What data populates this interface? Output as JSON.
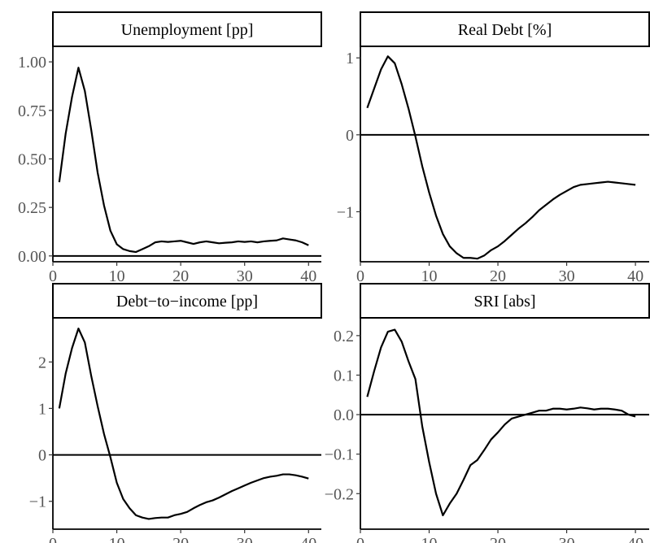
{
  "chart_data": [
    {
      "type": "line",
      "title": "Unemployment [pp]",
      "xlim": [
        0,
        42
      ],
      "ylim": [
        -0.03,
        1.08
      ],
      "x_ticks": [
        0,
        10,
        20,
        30,
        40
      ],
      "y_ticks": [
        0.0,
        0.25,
        0.5,
        0.75,
        1.0
      ],
      "y_tick_labels": [
        "0.00",
        "0.25",
        "0.50",
        "0.75",
        "1.00"
      ],
      "zero_line": true,
      "grid": false,
      "x": [
        1,
        2,
        3,
        4,
        5,
        6,
        7,
        8,
        9,
        10,
        11,
        12,
        13,
        14,
        15,
        16,
        17,
        18,
        19,
        20,
        21,
        22,
        23,
        24,
        25,
        26,
        27,
        28,
        29,
        30,
        31,
        32,
        33,
        34,
        35,
        36,
        37,
        38,
        39,
        40
      ],
      "y": [
        0.38,
        0.63,
        0.82,
        0.97,
        0.85,
        0.65,
        0.43,
        0.26,
        0.13,
        0.06,
        0.035,
        0.025,
        0.02,
        0.035,
        0.05,
        0.07,
        0.075,
        0.072,
        0.075,
        0.078,
        0.07,
        0.062,
        0.07,
        0.075,
        0.07,
        0.065,
        0.068,
        0.07,
        0.075,
        0.072,
        0.075,
        0.07,
        0.075,
        0.078,
        0.08,
        0.09,
        0.085,
        0.08,
        0.07,
        0.055
      ]
    },
    {
      "type": "line",
      "title": "Real Debt [%]",
      "xlim": [
        0,
        42
      ],
      "ylim": [
        -1.65,
        1.15
      ],
      "x_ticks": [
        0,
        10,
        20,
        30,
        40
      ],
      "y_ticks": [
        -1,
        0,
        1
      ],
      "y_tick_labels": [
        "−1",
        "0",
        "1"
      ],
      "zero_line": true,
      "grid": false,
      "x": [
        1,
        2,
        3,
        4,
        5,
        6,
        7,
        8,
        9,
        10,
        11,
        12,
        13,
        14,
        15,
        16,
        17,
        18,
        19,
        20,
        21,
        22,
        23,
        24,
        25,
        26,
        27,
        28,
        29,
        30,
        31,
        32,
        33,
        34,
        35,
        36,
        37,
        38,
        39,
        40
      ],
      "y": [
        0.35,
        0.6,
        0.85,
        1.02,
        0.93,
        0.66,
        0.34,
        -0.02,
        -0.41,
        -0.75,
        -1.05,
        -1.29,
        -1.45,
        -1.54,
        -1.6,
        -1.6,
        -1.61,
        -1.57,
        -1.5,
        -1.45,
        -1.38,
        -1.3,
        -1.22,
        -1.15,
        -1.07,
        -0.98,
        -0.91,
        -0.84,
        -0.78,
        -0.73,
        -0.68,
        -0.65,
        -0.64,
        -0.63,
        -0.62,
        -0.61,
        -0.62,
        -0.63,
        -0.64,
        -0.65
      ]
    },
    {
      "type": "line",
      "title": "Debt−to−income [pp]",
      "xlim": [
        0,
        42
      ],
      "ylim": [
        -1.6,
        2.95
      ],
      "x_ticks": [
        0,
        10,
        20,
        30,
        40
      ],
      "y_ticks": [
        -1,
        0,
        1,
        2
      ],
      "y_tick_labels": [
        "−1",
        "0",
        "1",
        "2"
      ],
      "zero_line": true,
      "grid": false,
      "x": [
        1,
        2,
        3,
        4,
        5,
        6,
        7,
        8,
        9,
        10,
        11,
        12,
        13,
        14,
        15,
        16,
        17,
        18,
        19,
        20,
        21,
        22,
        23,
        24,
        25,
        26,
        27,
        28,
        29,
        30,
        31,
        32,
        33,
        34,
        35,
        36,
        37,
        38,
        39,
        40
      ],
      "y": [
        1.0,
        1.75,
        2.3,
        2.72,
        2.42,
        1.7,
        1.05,
        0.45,
        -0.05,
        -0.6,
        -0.95,
        -1.15,
        -1.3,
        -1.35,
        -1.38,
        -1.36,
        -1.35,
        -1.35,
        -1.3,
        -1.27,
        -1.23,
        -1.15,
        -1.08,
        -1.02,
        -0.98,
        -0.92,
        -0.85,
        -0.78,
        -0.72,
        -0.66,
        -0.6,
        -0.55,
        -0.5,
        -0.47,
        -0.45,
        -0.42,
        -0.42,
        -0.44,
        -0.47,
        -0.51
      ]
    },
    {
      "type": "line",
      "title": "SRI [abs]",
      "xlim": [
        0,
        42
      ],
      "ylim": [
        -0.29,
        0.245
      ],
      "x_ticks": [
        0,
        10,
        20,
        30,
        40
      ],
      "y_ticks": [
        -0.2,
        -0.1,
        0.0,
        0.1,
        0.2
      ],
      "y_tick_labels": [
        "−0.2",
        "−0.1",
        "0.0",
        "0.1",
        "0.2"
      ],
      "zero_line": true,
      "grid": false,
      "x": [
        1,
        2,
        3,
        4,
        5,
        6,
        7,
        8,
        9,
        10,
        11,
        12,
        13,
        14,
        15,
        16,
        17,
        18,
        19,
        20,
        21,
        22,
        23,
        24,
        25,
        26,
        27,
        28,
        29,
        30,
        31,
        32,
        33,
        34,
        35,
        36,
        37,
        38,
        39,
        40
      ],
      "y": [
        0.045,
        0.11,
        0.17,
        0.21,
        0.215,
        0.185,
        0.135,
        0.09,
        -0.03,
        -0.12,
        -0.2,
        -0.255,
        -0.225,
        -0.2,
        -0.165,
        -0.128,
        -0.115,
        -0.09,
        -0.063,
        -0.045,
        -0.025,
        -0.01,
        -0.005,
        0.0,
        0.005,
        0.01,
        0.01,
        0.015,
        0.015,
        0.013,
        0.015,
        0.018,
        0.016,
        0.013,
        0.015,
        0.015,
        0.013,
        0.01,
        0.0,
        -0.005
      ]
    }
  ]
}
